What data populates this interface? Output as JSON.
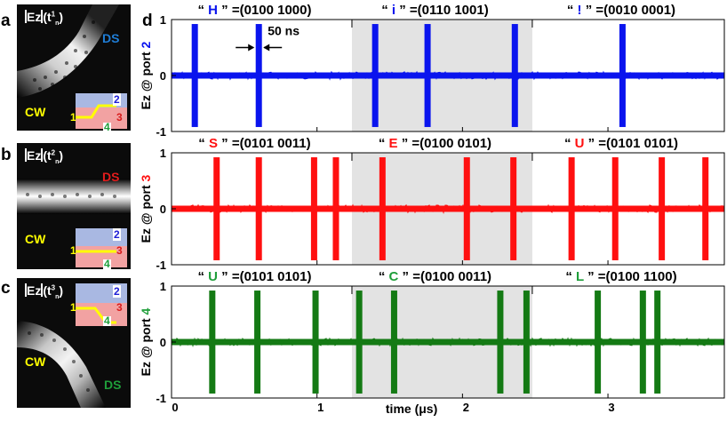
{
  "figure_labels": {
    "a": "a",
    "b": "b",
    "c": "c",
    "d": "d"
  },
  "field_panels": [
    {
      "title": "Ez",
      "sup": "1",
      "sub": "n",
      "port_text": "DS",
      "port_color": "#1f7dd6",
      "cw": "CW",
      "inset_numbers": [
        "1",
        "2",
        "3",
        "4"
      ]
    },
    {
      "title": "Ez",
      "sup": "2",
      "sub": "n",
      "port_text": "DS",
      "port_color": "#e21c1c",
      "cw": "CW",
      "inset_numbers": [
        "1",
        "2",
        "3",
        "4"
      ]
    },
    {
      "title": "Ez",
      "sup": "3",
      "sub": "n",
      "port_text": "DS",
      "port_color": "#1f9e3a",
      "cw": "CW",
      "inset_numbers": [
        "1",
        "2",
        "3",
        "4"
      ]
    }
  ],
  "inset_colors": {
    "upper": "#a9b8e2",
    "lower": "#f2a2a2",
    "path": "#ffff00",
    "num1": "#ffff00",
    "num2": "#1f1fd6",
    "num3": "#d81c1c",
    "num4": "#1f9e3a"
  },
  "chart_data": {
    "type": "line",
    "xlabel": "time (μs)",
    "xlim": [
      0,
      3.8
    ],
    "xticks": [
      0,
      1,
      2,
      3
    ],
    "ylim": [
      -1,
      1
    ],
    "yticks": [
      -1,
      0,
      1
    ],
    "highlight": {
      "x_range": [
        1.24,
        2.48
      ],
      "color": "#e3e3e3"
    },
    "annotation": {
      "text": "50 ns",
      "x": 0.6
    },
    "rows": [
      {
        "ylabel": "Ez @ port ",
        "port": "2",
        "color": "#0a14ee",
        "chars": [
          {
            "char": "H",
            "code": "=(0100 1000)"
          },
          {
            "char": "i",
            "code": "=(0110 1001)"
          },
          {
            "char": "!",
            "code": "=(0010 0001)"
          }
        ],
        "pulse_times": [
          0.16,
          0.6,
          1.4,
          1.76,
          2.36,
          3.1
        ]
      },
      {
        "ylabel": "Ez @ port ",
        "port": "3",
        "color": "#ff1010",
        "chars": [
          {
            "char": "S",
            "code": "=(0101 0011)"
          },
          {
            "char": "E",
            "code": "=(0100 0101)"
          },
          {
            "char": "U",
            "code": "=(0101 0101)"
          }
        ],
        "pulse_times": [
          0.31,
          0.6,
          0.98,
          1.13,
          1.45,
          2.03,
          2.35,
          2.75,
          3.05,
          3.37,
          3.67
        ]
      },
      {
        "ylabel": "Ez @ port ",
        "port": "4",
        "color": "#147a14",
        "chars": [
          {
            "char": "U",
            "code": "=(0101 0101)"
          },
          {
            "char": "C",
            "code": "=(0100 0011)"
          },
          {
            "char": "L",
            "code": "=(0100 1100)"
          }
        ],
        "pulse_times": [
          0.28,
          0.59,
          0.99,
          1.29,
          1.53,
          2.26,
          2.44,
          2.93,
          3.24,
          3.34
        ]
      }
    ],
    "char_colors": [
      "#0a14ee",
      "#ff1010",
      "#1f9e3a"
    ]
  }
}
